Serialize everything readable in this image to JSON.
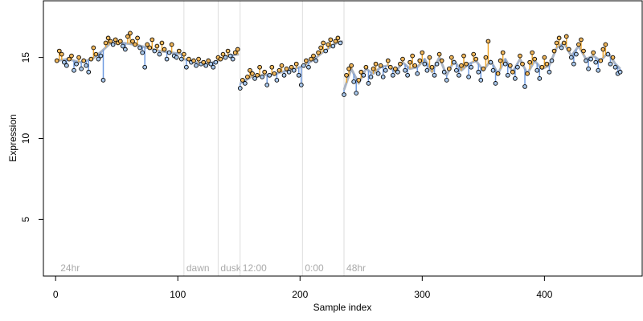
{
  "chart_data": {
    "type": "scatter",
    "title": "",
    "xlabel": "Sample index",
    "ylabel": "Expression",
    "xlim": [
      -10,
      480
    ],
    "ylim": [
      1.5,
      18.5
    ],
    "x_ticks": [
      0,
      100,
      200,
      300,
      400
    ],
    "y_ticks": [
      5,
      10,
      15
    ],
    "grid": false,
    "legend": "none",
    "colors": {
      "fit_line": "#aab4c4",
      "point_fill_above": "#f2b85c",
      "point_fill_below": "#a9c8ec",
      "residual_above": "#f0a830",
      "residual_below": "#6f9be0",
      "phase_line": "#dddddd",
      "phase_text": "#aaaaaa"
    },
    "phase_markers": [
      {
        "x": 2,
        "label": "24hr",
        "line": false
      },
      {
        "x": 105,
        "label": "dawn",
        "line": true
      },
      {
        "x": 133,
        "label": "dusk",
        "line": true
      },
      {
        "x": 151,
        "label": "12:00",
        "line": true
      },
      {
        "x": 202,
        "label": "0:00",
        "line": true
      },
      {
        "x": 236,
        "label": "48hr",
        "line": true
      }
    ],
    "segments": [
      {
        "x_start": 1,
        "x_end": 104,
        "points": [
          [
            1,
            14.8
          ],
          [
            3,
            15.4
          ],
          [
            5,
            15.2
          ],
          [
            7,
            14.7
          ],
          [
            9,
            14.5
          ],
          [
            11,
            14.9
          ],
          [
            13,
            15.1
          ],
          [
            15,
            14.2
          ],
          [
            17,
            14.6
          ],
          [
            19,
            15.0
          ],
          [
            21,
            14.3
          ],
          [
            23,
            14.8
          ],
          [
            25,
            14.5
          ],
          [
            27,
            14.1
          ],
          [
            29,
            14.9
          ],
          [
            31,
            15.6
          ],
          [
            33,
            15.2
          ],
          [
            35,
            14.9
          ],
          [
            37,
            15.1
          ],
          [
            39,
            13.6
          ],
          [
            41,
            15.9
          ],
          [
            43,
            16.2
          ],
          [
            45,
            16.0
          ],
          [
            47,
            15.8
          ],
          [
            49,
            16.1
          ],
          [
            51,
            15.9
          ],
          [
            53,
            16.0
          ],
          [
            55,
            15.7
          ],
          [
            57,
            15.5
          ],
          [
            59,
            16.3
          ],
          [
            61,
            16.5
          ],
          [
            63,
            16.0
          ],
          [
            65,
            15.8
          ],
          [
            67,
            16.2
          ],
          [
            69,
            15.6
          ],
          [
            71,
            15.3
          ],
          [
            73,
            14.4
          ],
          [
            75,
            15.8
          ],
          [
            77,
            15.6
          ],
          [
            79,
            16.1
          ],
          [
            81,
            15.4
          ],
          [
            83,
            15.7
          ],
          [
            85,
            15.2
          ],
          [
            87,
            15.9
          ],
          [
            89,
            15.5
          ],
          [
            91,
            14.9
          ],
          [
            93,
            15.3
          ],
          [
            95,
            15.8
          ],
          [
            97,
            15.1
          ],
          [
            99,
            15.0
          ],
          [
            101,
            15.4
          ],
          [
            103,
            14.9
          ]
        ],
        "fit": [
          [
            1,
            14.8
          ],
          [
            10,
            14.9
          ],
          [
            20,
            14.7
          ],
          [
            30,
            14.9
          ],
          [
            38,
            15.4
          ],
          [
            45,
            15.9
          ],
          [
            55,
            15.9
          ],
          [
            65,
            15.8
          ],
          [
            75,
            15.6
          ],
          [
            85,
            15.4
          ],
          [
            95,
            15.3
          ],
          [
            104,
            15.2
          ]
        ]
      },
      {
        "x_start": 105,
        "x_end": 150,
        "points": [
          [
            105,
            15.2
          ],
          [
            107,
            14.4
          ],
          [
            109,
            14.9
          ],
          [
            111,
            14.7
          ],
          [
            113,
            14.8
          ],
          [
            115,
            14.5
          ],
          [
            117,
            14.9
          ],
          [
            119,
            14.6
          ],
          [
            121,
            14.7
          ],
          [
            123,
            14.5
          ],
          [
            125,
            14.8
          ],
          [
            127,
            14.6
          ],
          [
            129,
            14.4
          ],
          [
            131,
            14.7
          ],
          [
            133,
            15.0
          ],
          [
            135,
            14.9
          ],
          [
            137,
            15.2
          ],
          [
            139,
            15.0
          ],
          [
            141,
            15.4
          ],
          [
            143,
            15.1
          ],
          [
            145,
            14.9
          ],
          [
            147,
            15.3
          ],
          [
            149,
            15.5
          ]
        ],
        "fit": [
          [
            105,
            14.9
          ],
          [
            115,
            14.7
          ],
          [
            125,
            14.6
          ],
          [
            133,
            14.8
          ],
          [
            140,
            15.1
          ],
          [
            150,
            15.2
          ]
        ]
      },
      {
        "x_start": 151,
        "x_end": 235,
        "points": [
          [
            151,
            13.1
          ],
          [
            153,
            13.6
          ],
          [
            155,
            13.4
          ],
          [
            157,
            13.8
          ],
          [
            159,
            14.2
          ],
          [
            161,
            14.0
          ],
          [
            163,
            13.7
          ],
          [
            165,
            13.9
          ],
          [
            167,
            14.4
          ],
          [
            169,
            13.8
          ],
          [
            171,
            14.1
          ],
          [
            173,
            13.3
          ],
          [
            175,
            13.9
          ],
          [
            177,
            14.4
          ],
          [
            179,
            14.0
          ],
          [
            181,
            13.6
          ],
          [
            183,
            14.2
          ],
          [
            185,
            14.5
          ],
          [
            187,
            13.9
          ],
          [
            189,
            14.3
          ],
          [
            191,
            14.1
          ],
          [
            193,
            14.4
          ],
          [
            195,
            14.2
          ],
          [
            197,
            14.6
          ],
          [
            199,
            13.9
          ],
          [
            201,
            13.3
          ],
          [
            203,
            14.5
          ],
          [
            205,
            14.8
          ],
          [
            207,
            14.4
          ],
          [
            209,
            14.9
          ],
          [
            211,
            15.1
          ],
          [
            213,
            14.8
          ],
          [
            215,
            15.3
          ],
          [
            217,
            15.6
          ],
          [
            219,
            15.9
          ],
          [
            221,
            15.4
          ],
          [
            223,
            15.8
          ],
          [
            225,
            16.1
          ],
          [
            227,
            15.7
          ],
          [
            229,
            16.0
          ],
          [
            231,
            16.2
          ],
          [
            233,
            15.9
          ]
        ],
        "fit": [
          [
            151,
            13.4
          ],
          [
            160,
            13.8
          ],
          [
            170,
            13.9
          ],
          [
            180,
            14.0
          ],
          [
            190,
            14.2
          ],
          [
            200,
            14.4
          ],
          [
            210,
            14.8
          ],
          [
            220,
            15.4
          ],
          [
            230,
            15.9
          ],
          [
            235,
            16.0
          ]
        ]
      },
      {
        "x_start": 236,
        "x_end": 462,
        "points": [
          [
            236,
            12.7
          ],
          [
            238,
            13.9
          ],
          [
            240,
            14.3
          ],
          [
            242,
            14.5
          ],
          [
            244,
            13.5
          ],
          [
            246,
            12.8
          ],
          [
            248,
            13.6
          ],
          [
            250,
            14.1
          ],
          [
            252,
            13.9
          ],
          [
            254,
            14.4
          ],
          [
            256,
            13.4
          ],
          [
            258,
            13.8
          ],
          [
            260,
            14.3
          ],
          [
            262,
            14.6
          ],
          [
            264,
            14.0
          ],
          [
            266,
            14.5
          ],
          [
            268,
            13.8
          ],
          [
            270,
            14.2
          ],
          [
            272,
            14.8
          ],
          [
            274,
            14.4
          ],
          [
            276,
            13.9
          ],
          [
            278,
            14.3
          ],
          [
            280,
            14.1
          ],
          [
            282,
            14.6
          ],
          [
            284,
            14.9
          ],
          [
            286,
            14.2
          ],
          [
            288,
            13.9
          ],
          [
            290,
            14.7
          ],
          [
            292,
            15.1
          ],
          [
            294,
            14.5
          ],
          [
            296,
            14.0
          ],
          [
            298,
            14.8
          ],
          [
            300,
            15.3
          ],
          [
            302,
            14.6
          ],
          [
            304,
            14.2
          ],
          [
            306,
            15.0
          ],
          [
            308,
            14.4
          ],
          [
            310,
            13.9
          ],
          [
            312,
            14.6
          ],
          [
            314,
            15.2
          ],
          [
            316,
            14.8
          ],
          [
            318,
            14.1
          ],
          [
            320,
            13.6
          ],
          [
            322,
            14.3
          ],
          [
            324,
            15.0
          ],
          [
            326,
            14.7
          ],
          [
            328,
            14.2
          ],
          [
            330,
            13.9
          ],
          [
            332,
            14.5
          ],
          [
            334,
            15.1
          ],
          [
            336,
            14.6
          ],
          [
            338,
            13.8
          ],
          [
            340,
            14.4
          ],
          [
            342,
            15.2
          ],
          [
            344,
            14.9
          ],
          [
            346,
            14.1
          ],
          [
            348,
            13.6
          ],
          [
            350,
            14.3
          ],
          [
            352,
            15.0
          ],
          [
            354,
            16.0
          ],
          [
            356,
            14.7
          ],
          [
            358,
            14.2
          ],
          [
            360,
            13.4
          ],
          [
            362,
            14.0
          ],
          [
            364,
            14.8
          ],
          [
            366,
            15.3
          ],
          [
            368,
            14.6
          ],
          [
            370,
            13.9
          ],
          [
            372,
            14.5
          ],
          [
            374,
            14.1
          ],
          [
            376,
            13.7
          ],
          [
            378,
            14.4
          ],
          [
            380,
            15.1
          ],
          [
            382,
            14.6
          ],
          [
            384,
            13.2
          ],
          [
            386,
            14.0
          ],
          [
            388,
            14.7
          ],
          [
            390,
            15.3
          ],
          [
            392,
            14.9
          ],
          [
            394,
            14.2
          ],
          [
            396,
            13.7
          ],
          [
            398,
            14.4
          ],
          [
            400,
            15.0
          ],
          [
            402,
            14.6
          ],
          [
            404,
            14.1
          ],
          [
            406,
            14.8
          ],
          [
            408,
            15.4
          ],
          [
            410,
            15.9
          ],
          [
            412,
            16.2
          ],
          [
            414,
            15.6
          ],
          [
            416,
            15.9
          ],
          [
            418,
            16.3
          ],
          [
            420,
            15.5
          ],
          [
            422,
            15.0
          ],
          [
            424,
            14.6
          ],
          [
            426,
            15.2
          ],
          [
            428,
            15.8
          ],
          [
            430,
            16.1
          ],
          [
            432,
            15.4
          ],
          [
            434,
            14.8
          ],
          [
            436,
            14.3
          ],
          [
            438,
            14.9
          ],
          [
            440,
            15.3
          ],
          [
            442,
            14.7
          ],
          [
            444,
            14.2
          ],
          [
            446,
            14.8
          ],
          [
            448,
            15.5
          ],
          [
            450,
            15.8
          ],
          [
            452,
            15.2
          ],
          [
            454,
            14.6
          ],
          [
            456,
            15.0
          ],
          [
            458,
            14.4
          ],
          [
            460,
            14.0
          ],
          [
            462,
            14.1
          ]
        ],
        "fit": [
          [
            236,
            13.0
          ],
          [
            242,
            14.3
          ],
          [
            248,
            13.4
          ],
          [
            254,
            14.3
          ],
          [
            260,
            14.0
          ],
          [
            266,
            14.4
          ],
          [
            272,
            14.5
          ],
          [
            278,
            14.1
          ],
          [
            284,
            14.7
          ],
          [
            290,
            14.3
          ],
          [
            296,
            14.4
          ],
          [
            302,
            14.9
          ],
          [
            308,
            14.1
          ],
          [
            314,
            15.0
          ],
          [
            320,
            13.9
          ],
          [
            326,
            14.8
          ],
          [
            332,
            14.2
          ],
          [
            338,
            14.6
          ],
          [
            344,
            14.8
          ],
          [
            350,
            14.2
          ],
          [
            356,
            14.8
          ],
          [
            362,
            14.0
          ],
          [
            368,
            14.9
          ],
          [
            374,
            14.1
          ],
          [
            380,
            14.9
          ],
          [
            386,
            14.0
          ],
          [
            392,
            14.8
          ],
          [
            398,
            14.3
          ],
          [
            404,
            14.5
          ],
          [
            410,
            15.6
          ],
          [
            416,
            15.9
          ],
          [
            422,
            15.1
          ],
          [
            428,
            15.7
          ],
          [
            434,
            14.9
          ],
          [
            440,
            15.1
          ],
          [
            446,
            14.8
          ],
          [
            452,
            15.3
          ],
          [
            458,
            14.6
          ],
          [
            462,
            14.3
          ]
        ]
      }
    ]
  }
}
